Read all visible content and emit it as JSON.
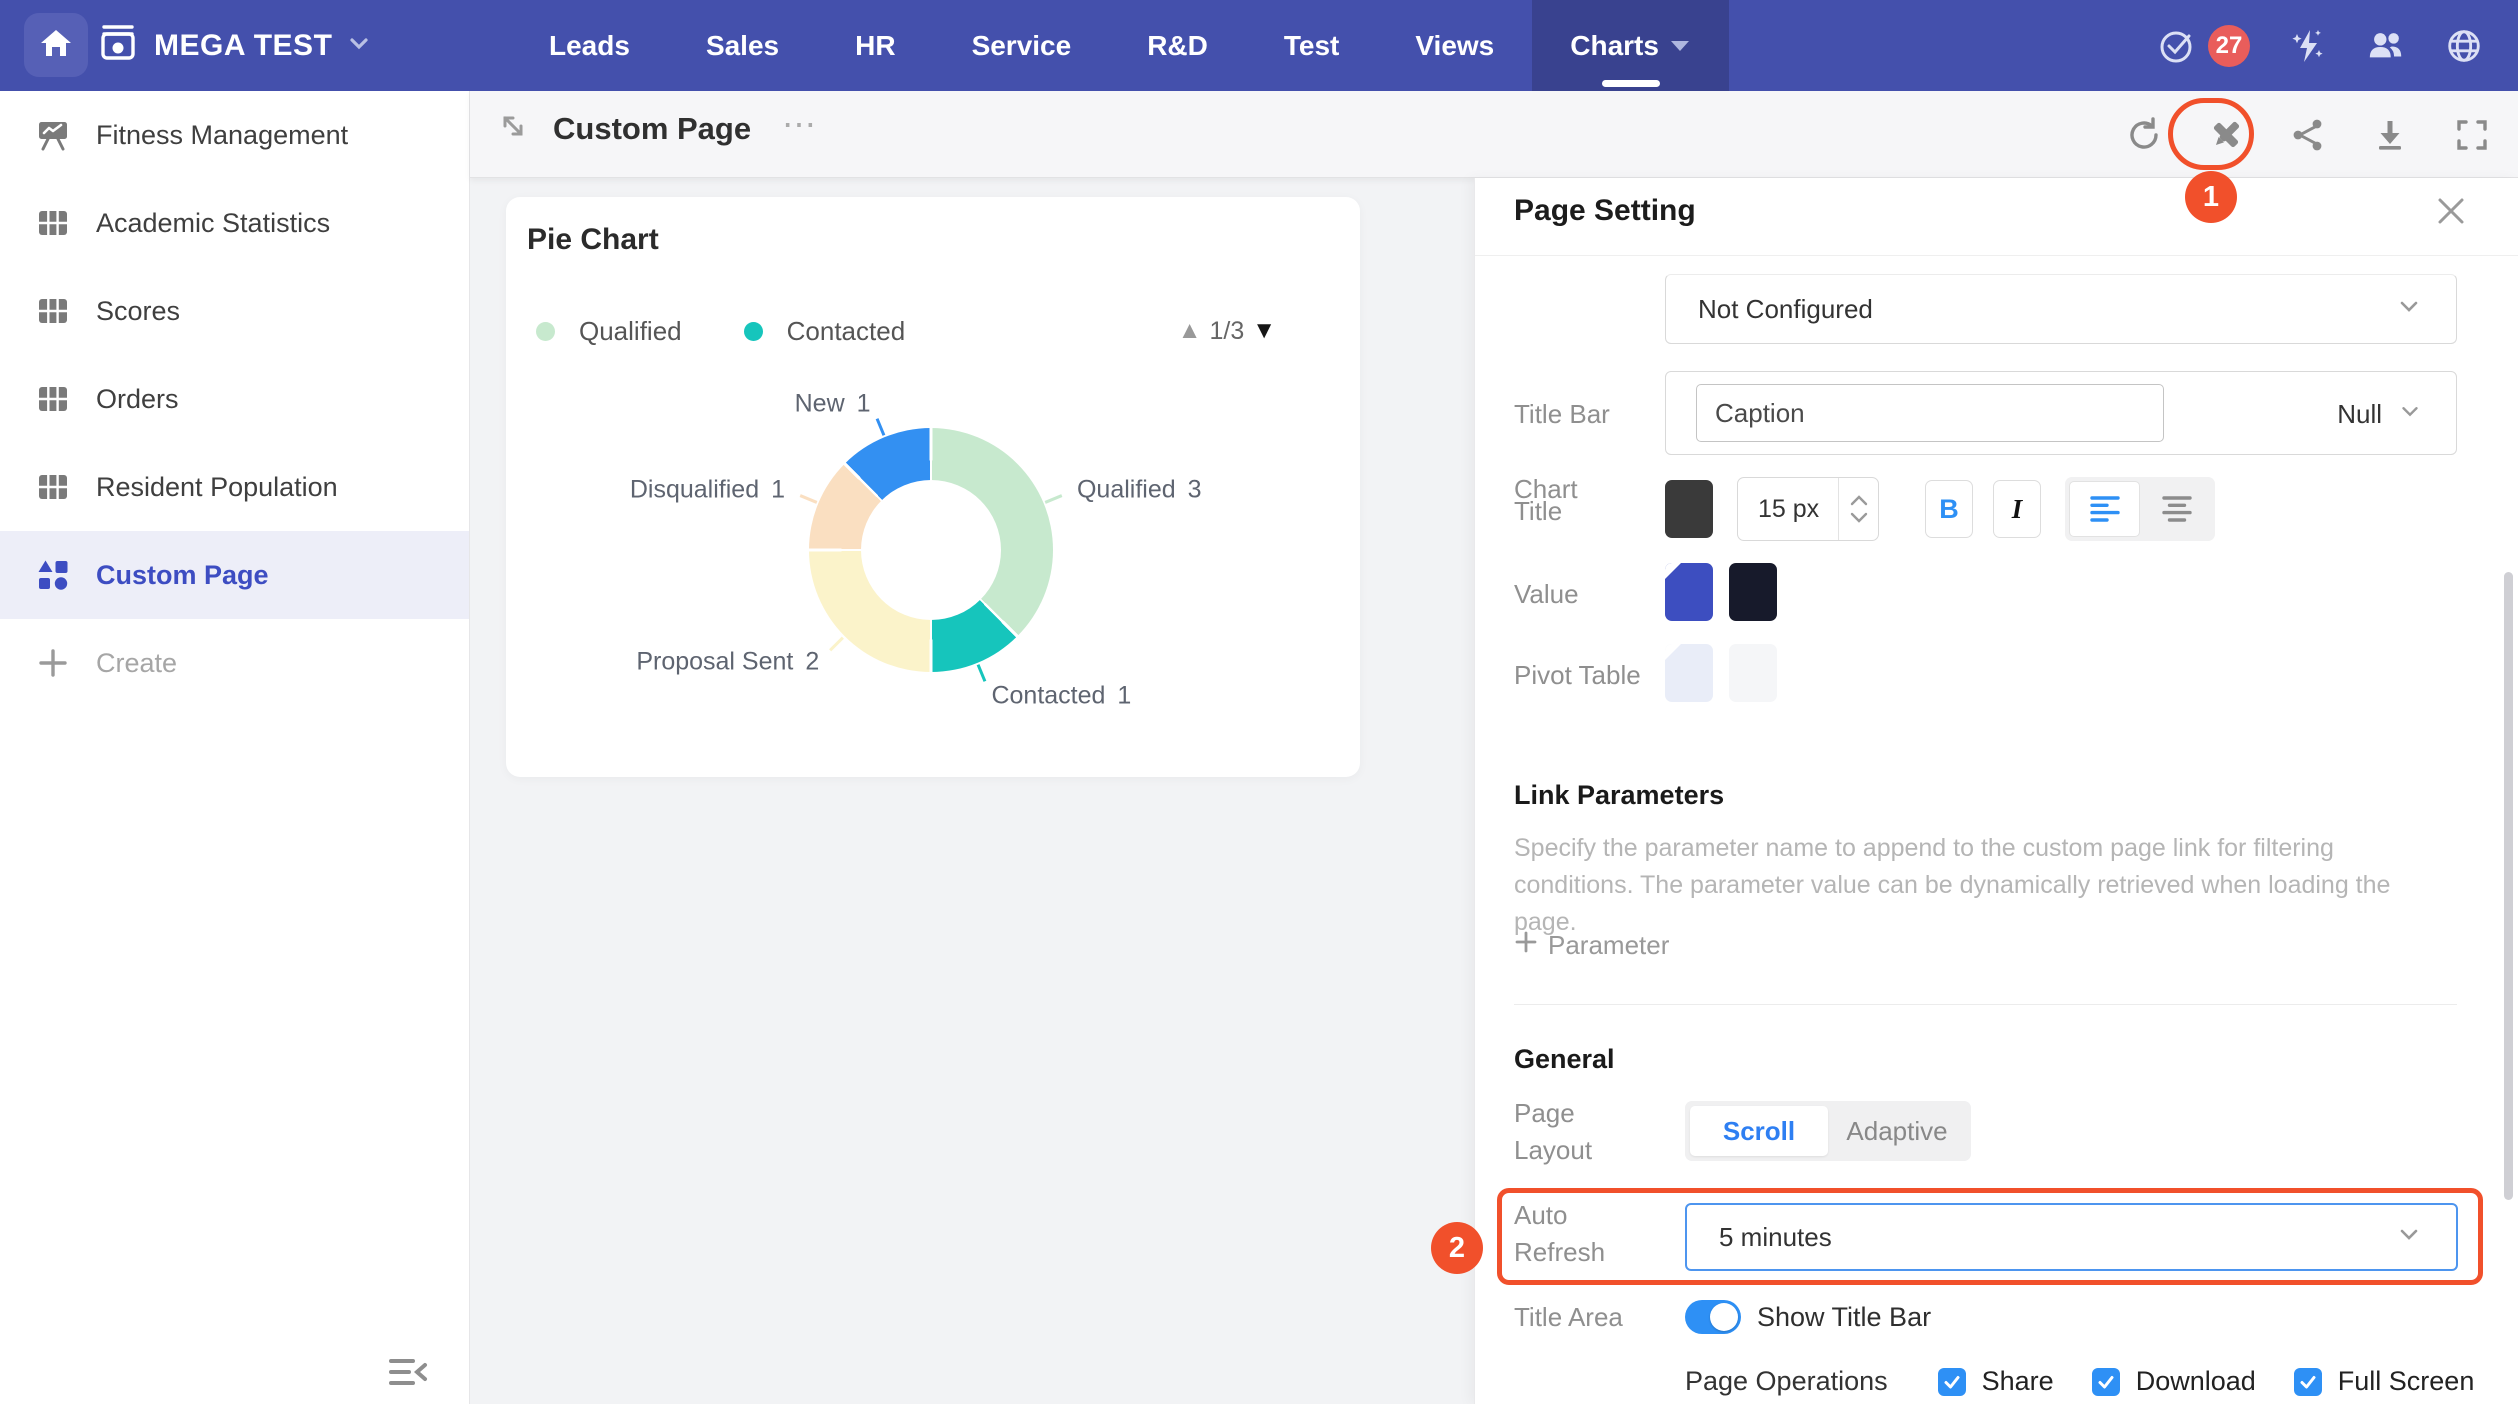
{
  "topnav": {
    "org": {
      "label": "MEGA TEST"
    },
    "items": [
      {
        "label": "Leads"
      },
      {
        "label": "Sales"
      },
      {
        "label": "HR"
      },
      {
        "label": "Service"
      },
      {
        "label": "R&D"
      },
      {
        "label": "Test"
      },
      {
        "label": "Views"
      },
      {
        "label": "Charts",
        "active": true,
        "caret": true
      }
    ],
    "todo_badge": "27"
  },
  "sidebar": {
    "items": [
      {
        "label": "Fitness Management",
        "icon": "presentation"
      },
      {
        "label": "Academic Statistics",
        "icon": "table"
      },
      {
        "label": "Scores",
        "icon": "table"
      },
      {
        "label": "Orders",
        "icon": "table"
      },
      {
        "label": "Resident Population",
        "icon": "table"
      },
      {
        "label": "Custom Page",
        "icon": "shapes",
        "active": true
      }
    ],
    "create_label": "Create"
  },
  "header": {
    "title": "Custom Page"
  },
  "chart_data": {
    "type": "pie",
    "title": "Pie Chart",
    "donut": true,
    "series": [
      {
        "name": "Qualified",
        "value": 3,
        "color": "#C7E9CE"
      },
      {
        "name": "Contacted",
        "value": 1,
        "color": "#16C5BC"
      },
      {
        "name": "Proposal Sent",
        "value": 2,
        "color": "#FBF3CA"
      },
      {
        "name": "Disqualified",
        "value": 1,
        "color": "#FADFC1"
      },
      {
        "name": "New",
        "value": 1,
        "color": "#3390F2"
      }
    ],
    "legend_visible": [
      "Qualified",
      "Contacted"
    ],
    "legend_pagination": "1/3",
    "legend_position": "top"
  },
  "panel": {
    "title": "Page Setting",
    "chart_row": {
      "label": "Chart",
      "value": "Not Configured"
    },
    "title_bar_row": {
      "label": "Title Bar",
      "input_value": "Caption",
      "null_label": "Null"
    },
    "title_row": {
      "label": "Title",
      "font_size": "15 px",
      "bold_label": "B",
      "italic_label": "I"
    },
    "value_row": {
      "label": "Value",
      "swatch1": "#3D4EC0",
      "swatch2": "#171A2B"
    },
    "pivot_row": {
      "label": "Pivot Table",
      "swatch1": "#E9EDF8",
      "swatch2": "#F5F6F8"
    },
    "link_parameters": {
      "heading": "Link Parameters",
      "description": "Specify the parameter name to append to the custom page link for filtering conditions. The parameter value can be dynamically retrieved when loading the page.",
      "add_label": "Parameter"
    },
    "general": {
      "heading": "General",
      "page_layout": {
        "label_line1": "Page",
        "label_line2": "Layout",
        "options": [
          "Scroll",
          "Adaptive"
        ],
        "selected": "Scroll"
      },
      "auto_refresh": {
        "label_line1": "Auto",
        "label_line2": "Refresh",
        "value": "5 minutes"
      },
      "title_area": {
        "label": "Title Area",
        "toggle_label": "Show Title Bar",
        "on": true
      },
      "page_operations": {
        "label": "Page Operations",
        "options": [
          {
            "label": "Share",
            "checked": true
          },
          {
            "label": "Download",
            "checked": true
          },
          {
            "label": "Full Screen",
            "checked": true
          }
        ]
      }
    }
  },
  "annotations": {
    "step1": "1",
    "step2": "2"
  },
  "colors": {
    "nav_bg": "#4450AC",
    "nav_active": "#39428F",
    "accent_blue": "#2E90F5",
    "alert_orange": "#F1502B",
    "badge_red": "#E95D5B",
    "sidebar_active_bg": "#EDEEF8",
    "sidebar_active_text": "#3D4DC2",
    "title_swatch": "#3A3A3A"
  }
}
